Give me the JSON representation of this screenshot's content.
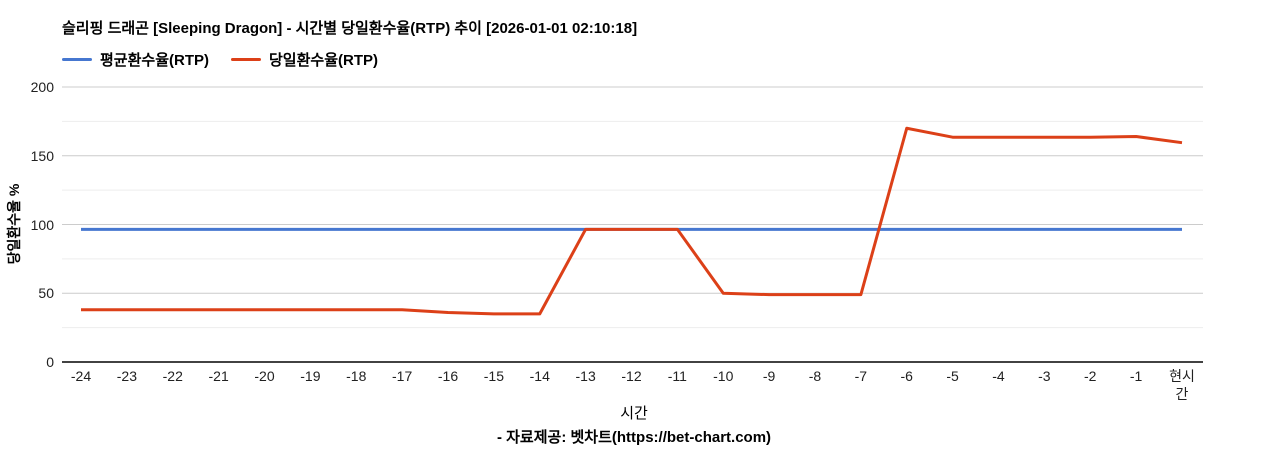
{
  "header": {
    "title": "슬리핑 드래곤 [Sleeping Dragon] - 시간별 당일환수율(RTP) 추이 [2026-01-01 02:10:18]"
  },
  "legend": {
    "items": [
      {
        "label": "평균환수율(RTP)",
        "color": "#4677d0"
      },
      {
        "label": "당일환수율(RTP)",
        "color": "#dc4018"
      }
    ]
  },
  "chart_data": {
    "type": "line",
    "title": "슬리핑 드래곤 [Sleeping Dragon] - 시간별 당일환수율(RTP) 추이 [2026-01-01 02:10:18]",
    "xlabel": "시간",
    "ylabel": "당일환수율 %",
    "ylim": [
      0,
      200
    ],
    "yticks": [
      0,
      50,
      100,
      150,
      200
    ],
    "minor_gridlines": [
      25,
      75,
      125,
      175
    ],
    "grid": true,
    "legend_position": "top-left",
    "categories": [
      "-24",
      "-23",
      "-22",
      "-21",
      "-20",
      "-19",
      "-18",
      "-17",
      "-16",
      "-15",
      "-14",
      "-13",
      "-12",
      "-11",
      "-10",
      "-9",
      "-8",
      "-7",
      "-6",
      "-5",
      "-4",
      "-3",
      "-2",
      "-1",
      "현시간"
    ],
    "series": [
      {
        "name": "평균환수율(RTP)",
        "color": "#4677d0",
        "values": [
          96.5,
          96.5,
          96.5,
          96.5,
          96.5,
          96.5,
          96.5,
          96.5,
          96.5,
          96.5,
          96.5,
          96.5,
          96.5,
          96.5,
          96.5,
          96.5,
          96.5,
          96.5,
          96.5,
          96.5,
          96.5,
          96.5,
          96.5,
          96.5,
          96.5
        ]
      },
      {
        "name": "당일환수율(RTP)",
        "color": "#dc4018",
        "values": [
          38,
          38,
          38,
          38,
          38,
          38,
          38,
          38,
          36,
          35,
          35,
          96.5,
          96.5,
          96.5,
          50,
          49,
          49,
          49,
          170,
          163.5,
          163.5,
          163.5,
          163.5,
          164,
          159.5
        ]
      }
    ]
  },
  "footer": {
    "credit": "- 자료제공: 벳차트(https://bet-chart.com)"
  },
  "colors": {
    "grid_major": "#cccccc",
    "grid_minor": "#ededed",
    "axis_line": "#424242",
    "tick_text": "#212121"
  }
}
